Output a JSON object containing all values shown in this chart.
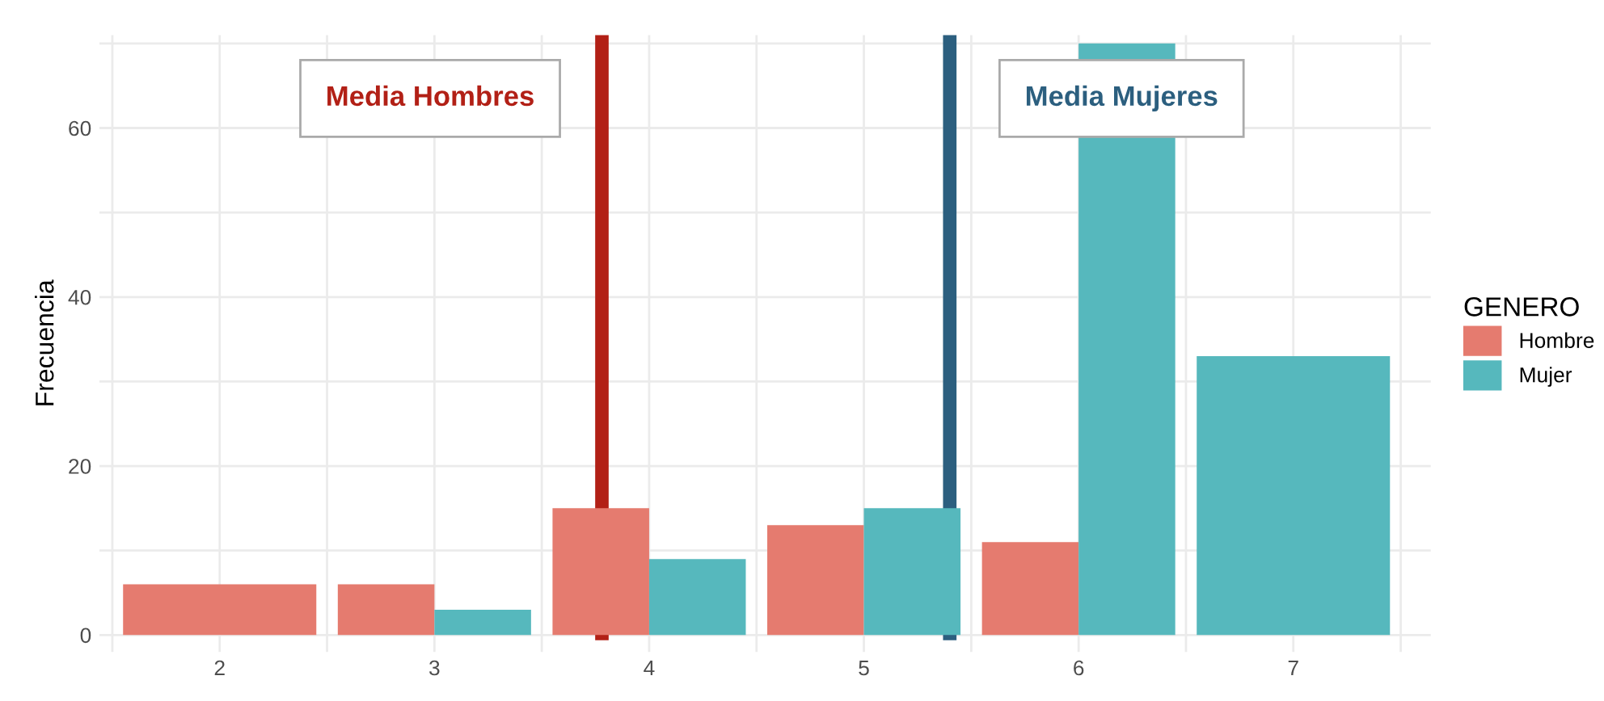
{
  "chart_data": {
    "type": "bar",
    "ylabel": "Frecuencia",
    "legend_title": "GENERO",
    "x": [
      2,
      3,
      4,
      5,
      6,
      7
    ],
    "series": [
      {
        "name": "Hombre",
        "color": "#e57b6f",
        "values": [
          6,
          6,
          15,
          13,
          11,
          null
        ]
      },
      {
        "name": "Mujer",
        "color": "#56b8bd",
        "values": [
          null,
          3,
          9,
          15,
          70,
          33
        ]
      }
    ],
    "xlim": [
      1.44,
      7.64
    ],
    "xticks": [
      2,
      3,
      4,
      5,
      6,
      7
    ],
    "ylim": [
      -2,
      71
    ],
    "yticks": [
      0,
      20,
      40,
      60
    ],
    "ref_lines": [
      {
        "axis": "x",
        "value": 3.78,
        "label": "Media Hombres",
        "color": "#b22016"
      },
      {
        "axis": "x",
        "value": 5.4,
        "label": "Media Mujeres",
        "color": "#2c5f7f"
      }
    ],
    "grid": true,
    "legend": "right"
  }
}
